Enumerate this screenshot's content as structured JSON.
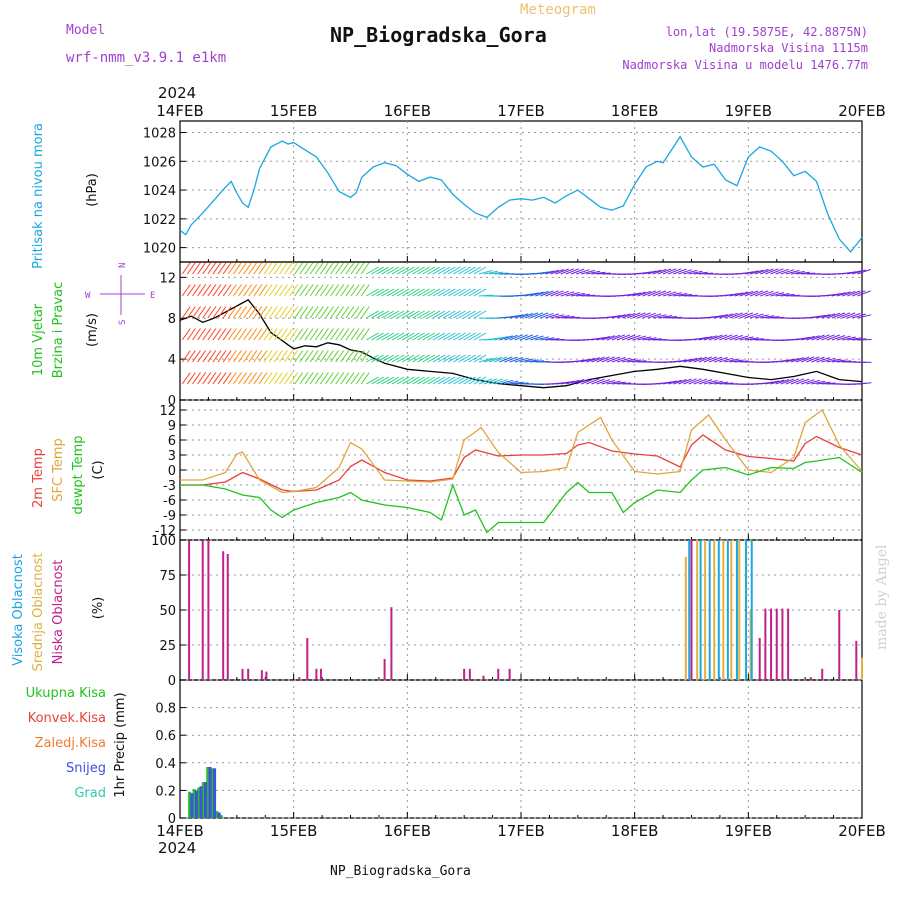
{
  "header": {
    "model_label": "Model",
    "model_name": "wrf-nmm_v3.9.1 e1km",
    "meteogram": "Meteogram",
    "title": "NP_Biogradska_Gora",
    "lonlat": "lon,lat (19.5875E, 42.8875N)",
    "elevation": "Nadmorska Visina 1115m",
    "model_elevation": "Nadmorska Visina u modelu 1476.77m",
    "footer": "NP_Biogradska_Gora",
    "watermark": "made by Angel",
    "year_top": "2024",
    "year_bottom": "2024"
  },
  "x_ticks": [
    "14FEB",
    "15FEB",
    "16FEB",
    "17FEB",
    "18FEB",
    "19FEB",
    "20FEB"
  ],
  "panel_labels": {
    "pressure": [
      "Pritisak na nivou mora",
      "(hPa)"
    ],
    "wind": [
      "10m Vjetar",
      "Brzina i Pravac",
      "(m/s)"
    ],
    "compass": [
      "N",
      "W",
      "E",
      "S"
    ],
    "temp": [
      "2m Temp",
      "SFC Temp",
      "dewpt Temp",
      "(C)"
    ],
    "cloud": [
      "Visoka Oblacnost",
      "Srednja Oblacnost",
      "Niska Oblacnost",
      "(%)"
    ],
    "precip_legend": [
      "Ukupna Kisa",
      "Konvek.Kisa",
      "Zaledj.Kisa",
      "Snijeg",
      "Grad"
    ],
    "precip_axis": "1hr Precip (mm)"
  },
  "colors": {
    "pressure": "#1aa7e0",
    "temp2m": "#e8413a",
    "sfc": "#e0a53a",
    "dewpt": "#22c21f",
    "cloud_high": "#1aa7e0",
    "cloud_mid": "#e0b040",
    "cloud_low": "#c0208a",
    "title_purple": "#a040d0",
    "meteogram_gold": "#f0c070",
    "precip_total": "#22c21f",
    "precip_conv": "#e8413a",
    "precip_frz": "#f07a30",
    "precip_snow": "#4050e0",
    "precip_grad": "#30c8b0"
  },
  "chart_data": [
    {
      "type": "line",
      "panel": "pressure",
      "ylabel": "(hPa)",
      "ylim": [
        1019,
        1028.8
      ],
      "yticks": [
        1020,
        1022,
        1024,
        1026,
        1028
      ],
      "x_unit": "days since 14FEB 00Z",
      "series": [
        {
          "name": "Pritisak na nivou mora",
          "x": [
            0,
            0.05,
            0.1,
            0.2,
            0.3,
            0.4,
            0.45,
            0.5,
            0.55,
            0.6,
            0.65,
            0.7,
            0.8,
            0.9,
            0.95,
            1.0,
            1.1,
            1.2,
            1.3,
            1.4,
            1.5,
            1.55,
            1.6,
            1.7,
            1.8,
            1.9,
            2.0,
            2.1,
            2.2,
            2.3,
            2.35,
            2.4,
            2.5,
            2.6,
            2.7,
            2.8,
            2.9,
            3.0,
            3.1,
            3.2,
            3.3,
            3.4,
            3.5,
            3.6,
            3.7,
            3.8,
            3.9,
            4.0,
            4.1,
            4.2,
            4.25,
            4.3,
            4.4,
            4.5,
            4.6,
            4.7,
            4.8,
            4.9,
            5.0,
            5.1,
            5.2,
            5.3,
            5.4,
            5.5,
            5.6,
            5.7,
            5.8,
            5.9,
            6.0
          ],
          "y": [
            1021.2,
            1020.9,
            1021.6,
            1022.4,
            1023.3,
            1024.2,
            1024.6,
            1023.8,
            1023.1,
            1022.8,
            1024.0,
            1025.5,
            1027.0,
            1027.4,
            1027.2,
            1027.3,
            1026.8,
            1026.3,
            1025.2,
            1023.9,
            1023.5,
            1023.8,
            1024.9,
            1025.6,
            1025.9,
            1025.7,
            1025.1,
            1024.6,
            1024.9,
            1024.7,
            1024.2,
            1023.7,
            1023.0,
            1022.4,
            1022.1,
            1022.8,
            1023.3,
            1023.4,
            1023.3,
            1023.5,
            1023.1,
            1023.6,
            1024.0,
            1023.4,
            1022.8,
            1022.6,
            1022.9,
            1024.4,
            1025.6,
            1026.0,
            1025.9,
            1026.5,
            1027.7,
            1026.3,
            1025.6,
            1025.8,
            1024.7,
            1024.3,
            1026.3,
            1027.0,
            1026.7,
            1026.0,
            1025.0,
            1025.3,
            1024.6,
            1022.3,
            1020.6,
            1019.7,
            1020.7
          ],
          "color": "#1aa7e0"
        }
      ]
    },
    {
      "type": "line",
      "panel": "wind",
      "ylabel": "(m/s)",
      "ylim": [
        0,
        13.5
      ],
      "yticks": [
        0,
        4,
        8,
        12
      ],
      "series": [
        {
          "name": "wind speed",
          "x": [
            0,
            0.1,
            0.2,
            0.3,
            0.4,
            0.5,
            0.6,
            0.7,
            0.8,
            0.9,
            1.0,
            1.1,
            1.2,
            1.3,
            1.4,
            1.5,
            1.6,
            1.7,
            1.8,
            1.9,
            2.0,
            2.2,
            2.4,
            2.6,
            2.8,
            3.0,
            3.2,
            3.4,
            3.6,
            3.8,
            4.0,
            4.2,
            4.4,
            4.6,
            4.8,
            5.0,
            5.2,
            5.4,
            5.6,
            5.8,
            6.0
          ],
          "y": [
            7.8,
            8.2,
            7.6,
            8.0,
            8.6,
            9.2,
            9.8,
            8.4,
            6.6,
            5.8,
            5.0,
            5.3,
            5.2,
            5.6,
            5.4,
            4.9,
            4.7,
            4.1,
            3.6,
            3.3,
            3.0,
            2.8,
            2.6,
            2.0,
            1.6,
            1.4,
            1.2,
            1.4,
            2.0,
            2.4,
            2.8,
            3.0,
            3.3,
            3.0,
            2.6,
            2.2,
            2.0,
            2.3,
            2.8,
            2.0,
            1.8
          ],
          "color": "#000000"
        }
      ]
    },
    {
      "type": "line",
      "panel": "temp",
      "ylabel": "(C)",
      "ylim": [
        -14,
        14
      ],
      "yticks": [
        -12,
        -9,
        -6,
        -3,
        0,
        3,
        6,
        9,
        12
      ],
      "series": [
        {
          "name": "2m Temp",
          "x": [
            0,
            0.2,
            0.4,
            0.55,
            0.7,
            0.9,
            1.0,
            1.2,
            1.4,
            1.5,
            1.6,
            1.8,
            2.0,
            2.2,
            2.4,
            2.5,
            2.6,
            2.8,
            3.0,
            3.2,
            3.4,
            3.5,
            3.6,
            3.8,
            4.0,
            4.2,
            4.4,
            4.5,
            4.6,
            4.8,
            5.0,
            5.2,
            5.4,
            5.5,
            5.6,
            5.8,
            6.0
          ],
          "y": [
            -3.0,
            -3.0,
            -2.4,
            -0.5,
            -1.8,
            -4.0,
            -4.3,
            -4.0,
            -2.0,
            0.7,
            2.0,
            -0.5,
            -2.0,
            -2.2,
            -1.6,
            2.5,
            4.0,
            2.8,
            3.0,
            3.0,
            3.3,
            5.0,
            5.5,
            3.8,
            3.2,
            2.8,
            0.6,
            5.0,
            7.0,
            4.0,
            2.7,
            2.3,
            1.8,
            5.3,
            6.7,
            4.5,
            3.0
          ],
          "color": "#e8413a"
        },
        {
          "name": "SFC Temp",
          "x": [
            0,
            0.2,
            0.4,
            0.5,
            0.55,
            0.7,
            0.9,
            1.0,
            1.2,
            1.4,
            1.5,
            1.6,
            1.8,
            2.0,
            2.2,
            2.4,
            2.5,
            2.65,
            2.8,
            3.0,
            3.2,
            3.4,
            3.5,
            3.7,
            3.8,
            4.0,
            4.2,
            4.4,
            4.5,
            4.65,
            4.8,
            5.0,
            5.2,
            5.4,
            5.5,
            5.65,
            5.8,
            6.0
          ],
          "y": [
            -2.0,
            -2.0,
            -0.5,
            3.2,
            3.6,
            -2.0,
            -4.5,
            -4.3,
            -3.5,
            0.5,
            5.5,
            4.2,
            -2.0,
            -2.2,
            -2.4,
            -1.8,
            6.0,
            8.5,
            3.5,
            -0.5,
            -0.3,
            0.5,
            7.5,
            10.5,
            6.0,
            -0.3,
            -0.8,
            -0.3,
            8.0,
            11.0,
            6.0,
            0.0,
            -0.5,
            2.5,
            9.5,
            12.0,
            5.0,
            -0.3
          ],
          "color": "#e0a53a"
        },
        {
          "name": "dewpt Temp",
          "x": [
            0,
            0.2,
            0.4,
            0.55,
            0.7,
            0.8,
            0.9,
            1.0,
            1.2,
            1.4,
            1.5,
            1.6,
            1.8,
            2.0,
            2.2,
            2.3,
            2.4,
            2.5,
            2.6,
            2.7,
            2.8,
            3.0,
            3.2,
            3.4,
            3.5,
            3.6,
            3.8,
            3.9,
            4.0,
            4.2,
            4.4,
            4.5,
            4.6,
            4.8,
            5.0,
            5.2,
            5.4,
            5.5,
            5.6,
            5.8,
            6.0
          ],
          "y": [
            -3.0,
            -3.0,
            -3.8,
            -5.0,
            -5.5,
            -8.0,
            -9.5,
            -8.0,
            -6.5,
            -5.5,
            -4.5,
            -6.0,
            -7.0,
            -7.5,
            -8.5,
            -10.0,
            -3.0,
            -9.0,
            -8.0,
            -12.5,
            -10.5,
            -10.5,
            -10.5,
            -4.5,
            -2.5,
            -4.5,
            -4.5,
            -8.5,
            -6.5,
            -4.0,
            -4.5,
            -2.0,
            0.0,
            0.5,
            -1.0,
            0.5,
            0.3,
            1.5,
            1.8,
            2.5,
            -0.5
          ],
          "color": "#22c21f"
        }
      ]
    },
    {
      "type": "bar",
      "panel": "cloud",
      "ylabel": "(%)",
      "ylim": [
        0,
        100
      ],
      "yticks": [
        0,
        25,
        50,
        75,
        100
      ],
      "series": [
        {
          "name": "Niska Oblacnost",
          "x": [
            0.08,
            0.2,
            0.25,
            0.38,
            0.42,
            0.55,
            0.6,
            0.72,
            0.76,
            1.05,
            1.12,
            1.2,
            1.24,
            1.8,
            1.86,
            2.5,
            2.55,
            2.67,
            2.8,
            2.9,
            4.5,
            5.1,
            5.15,
            5.2,
            5.25,
            5.3,
            5.35,
            5.55,
            5.65,
            5.8,
            5.95
          ],
          "y": [
            100,
            100,
            100,
            92,
            90,
            8,
            8,
            7,
            6,
            2,
            30,
            8,
            8,
            15,
            52,
            8,
            8,
            3,
            8,
            8,
            100,
            30,
            51,
            51,
            51,
            51,
            51,
            2,
            8,
            50,
            28
          ],
          "color": "#c0208a"
        },
        {
          "name": "Srednja Oblacnost",
          "x": [
            4.45,
            4.55,
            4.62,
            4.7,
            4.78,
            4.85,
            4.92,
            5.02,
            6.0
          ],
          "y": [
            88,
            100,
            100,
            100,
            100,
            100,
            100,
            50,
            16
          ],
          "color": "#e0b040"
        },
        {
          "name": "Visoka Oblacnost",
          "x": [
            4.48,
            4.58,
            4.66,
            4.74,
            4.82,
            4.9,
            4.98,
            5.03
          ],
          "y": [
            100,
            100,
            100,
            100,
            100,
            100,
            100,
            100
          ],
          "color": "#1aa7e0"
        }
      ]
    },
    {
      "type": "bar",
      "panel": "precip",
      "ylabel": "1hr Precip (mm)",
      "ylim": [
        0,
        1.0
      ],
      "yticks": [
        0,
        0.2,
        0.4,
        0.6,
        0.8
      ],
      "series": [
        {
          "name": "Ukupna Kisa",
          "x": [
            0.08,
            0.12,
            0.16,
            0.2,
            0.24,
            0.28,
            0.32,
            0.36
          ],
          "y": [
            0.19,
            0.21,
            0.22,
            0.26,
            0.37,
            0.36,
            0.05,
            0.02
          ],
          "color": "#22c21f"
        },
        {
          "name": "Snijeg",
          "x": [
            0.1,
            0.14,
            0.18,
            0.22,
            0.26,
            0.3,
            0.34
          ],
          "y": [
            0.18,
            0.2,
            0.23,
            0.26,
            0.37,
            0.36,
            0.04
          ],
          "color": "#4050e0"
        }
      ]
    }
  ]
}
